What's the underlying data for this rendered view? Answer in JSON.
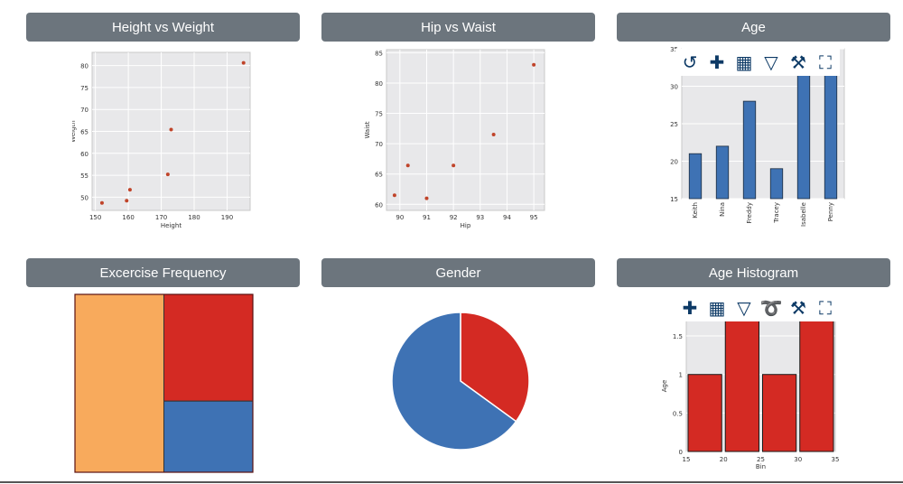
{
  "panels": {
    "height_weight": {
      "title": "Height vs Weight"
    },
    "hip_waist": {
      "title": "Hip vs Waist"
    },
    "age": {
      "title": "Age"
    },
    "exercise": {
      "title": "Excercise Frequency"
    },
    "gender": {
      "title": "Gender"
    },
    "age_hist": {
      "title": "Age Histogram"
    }
  },
  "toolbars": {
    "age": [
      "reset-icon",
      "pan-icon",
      "table-icon",
      "filter-icon",
      "settings-icon",
      "fullscreen-icon"
    ],
    "age_hist": [
      "pan-icon",
      "table-icon",
      "filter-icon",
      "lasso-icon",
      "settings-icon",
      "fullscreen-icon"
    ]
  },
  "chart_data": [
    {
      "id": "height_weight",
      "type": "scatter",
      "xlabel": "Height",
      "ylabel": "Weigth",
      "xlim": [
        149,
        197
      ],
      "ylim": [
        47,
        83
      ],
      "xticks": [
        150,
        160,
        170,
        180,
        190
      ],
      "yticks": [
        50,
        55,
        60,
        65,
        70,
        75,
        80
      ],
      "x": [
        152,
        159.5,
        160.5,
        172,
        173,
        195
      ],
      "y": [
        48.7,
        49.2,
        51.7,
        55.2,
        65.4,
        80.6
      ],
      "grid": true,
      "color": "#c0442a"
    },
    {
      "id": "hip_waist",
      "type": "scatter",
      "xlabel": "Hip",
      "ylabel": "Waist",
      "xlim": [
        89.5,
        95.4
      ],
      "ylim": [
        59,
        85.5
      ],
      "xticks": [
        90,
        91,
        92,
        93,
        94,
        95
      ],
      "yticks": [
        60,
        65,
        70,
        75,
        80,
        85
      ],
      "x": [
        89.8,
        90.3,
        91,
        92,
        93.5,
        95
      ],
      "y": [
        61.5,
        66.4,
        61,
        66.4,
        71.5,
        83
      ],
      "grid": true,
      "color": "#c0442a"
    },
    {
      "id": "age",
      "type": "bar",
      "categories": [
        "Keith",
        "Nina",
        "Freddy",
        "Tracey",
        "Isabelle",
        "Penny"
      ],
      "values": [
        21,
        22,
        28,
        19,
        32,
        33
      ],
      "ylim": [
        15,
        35
      ],
      "yticks": [
        15,
        20,
        25,
        30,
        35
      ],
      "color": "#3e72b4"
    },
    {
      "id": "exercise",
      "type": "treemap",
      "values": [
        50,
        30,
        20
      ],
      "colors": [
        "#f8aa5c",
        "#d42a23",
        "#3e72b4"
      ]
    },
    {
      "id": "gender",
      "type": "pie",
      "values": [
        35,
        65
      ],
      "colors": [
        "#d42a23",
        "#3e72b4"
      ]
    },
    {
      "id": "age_hist",
      "type": "bar",
      "xlabel": "Bin",
      "ylabel": "Age",
      "bins": [
        [
          15,
          20
        ],
        [
          20,
          25
        ],
        [
          25,
          30
        ],
        [
          30,
          35
        ]
      ],
      "values": [
        1,
        1.7,
        1,
        1.7
      ],
      "xlim": [
        15,
        35
      ],
      "ylim": [
        0,
        1.7
      ],
      "xticks": [
        15,
        20,
        25,
        30,
        35
      ],
      "yticks": [
        0,
        0.5,
        1,
        1.5
      ],
      "ytick_labels": [
        "0",
        "0.5",
        "1",
        "1.5"
      ],
      "color": "#d42a23"
    }
  ]
}
